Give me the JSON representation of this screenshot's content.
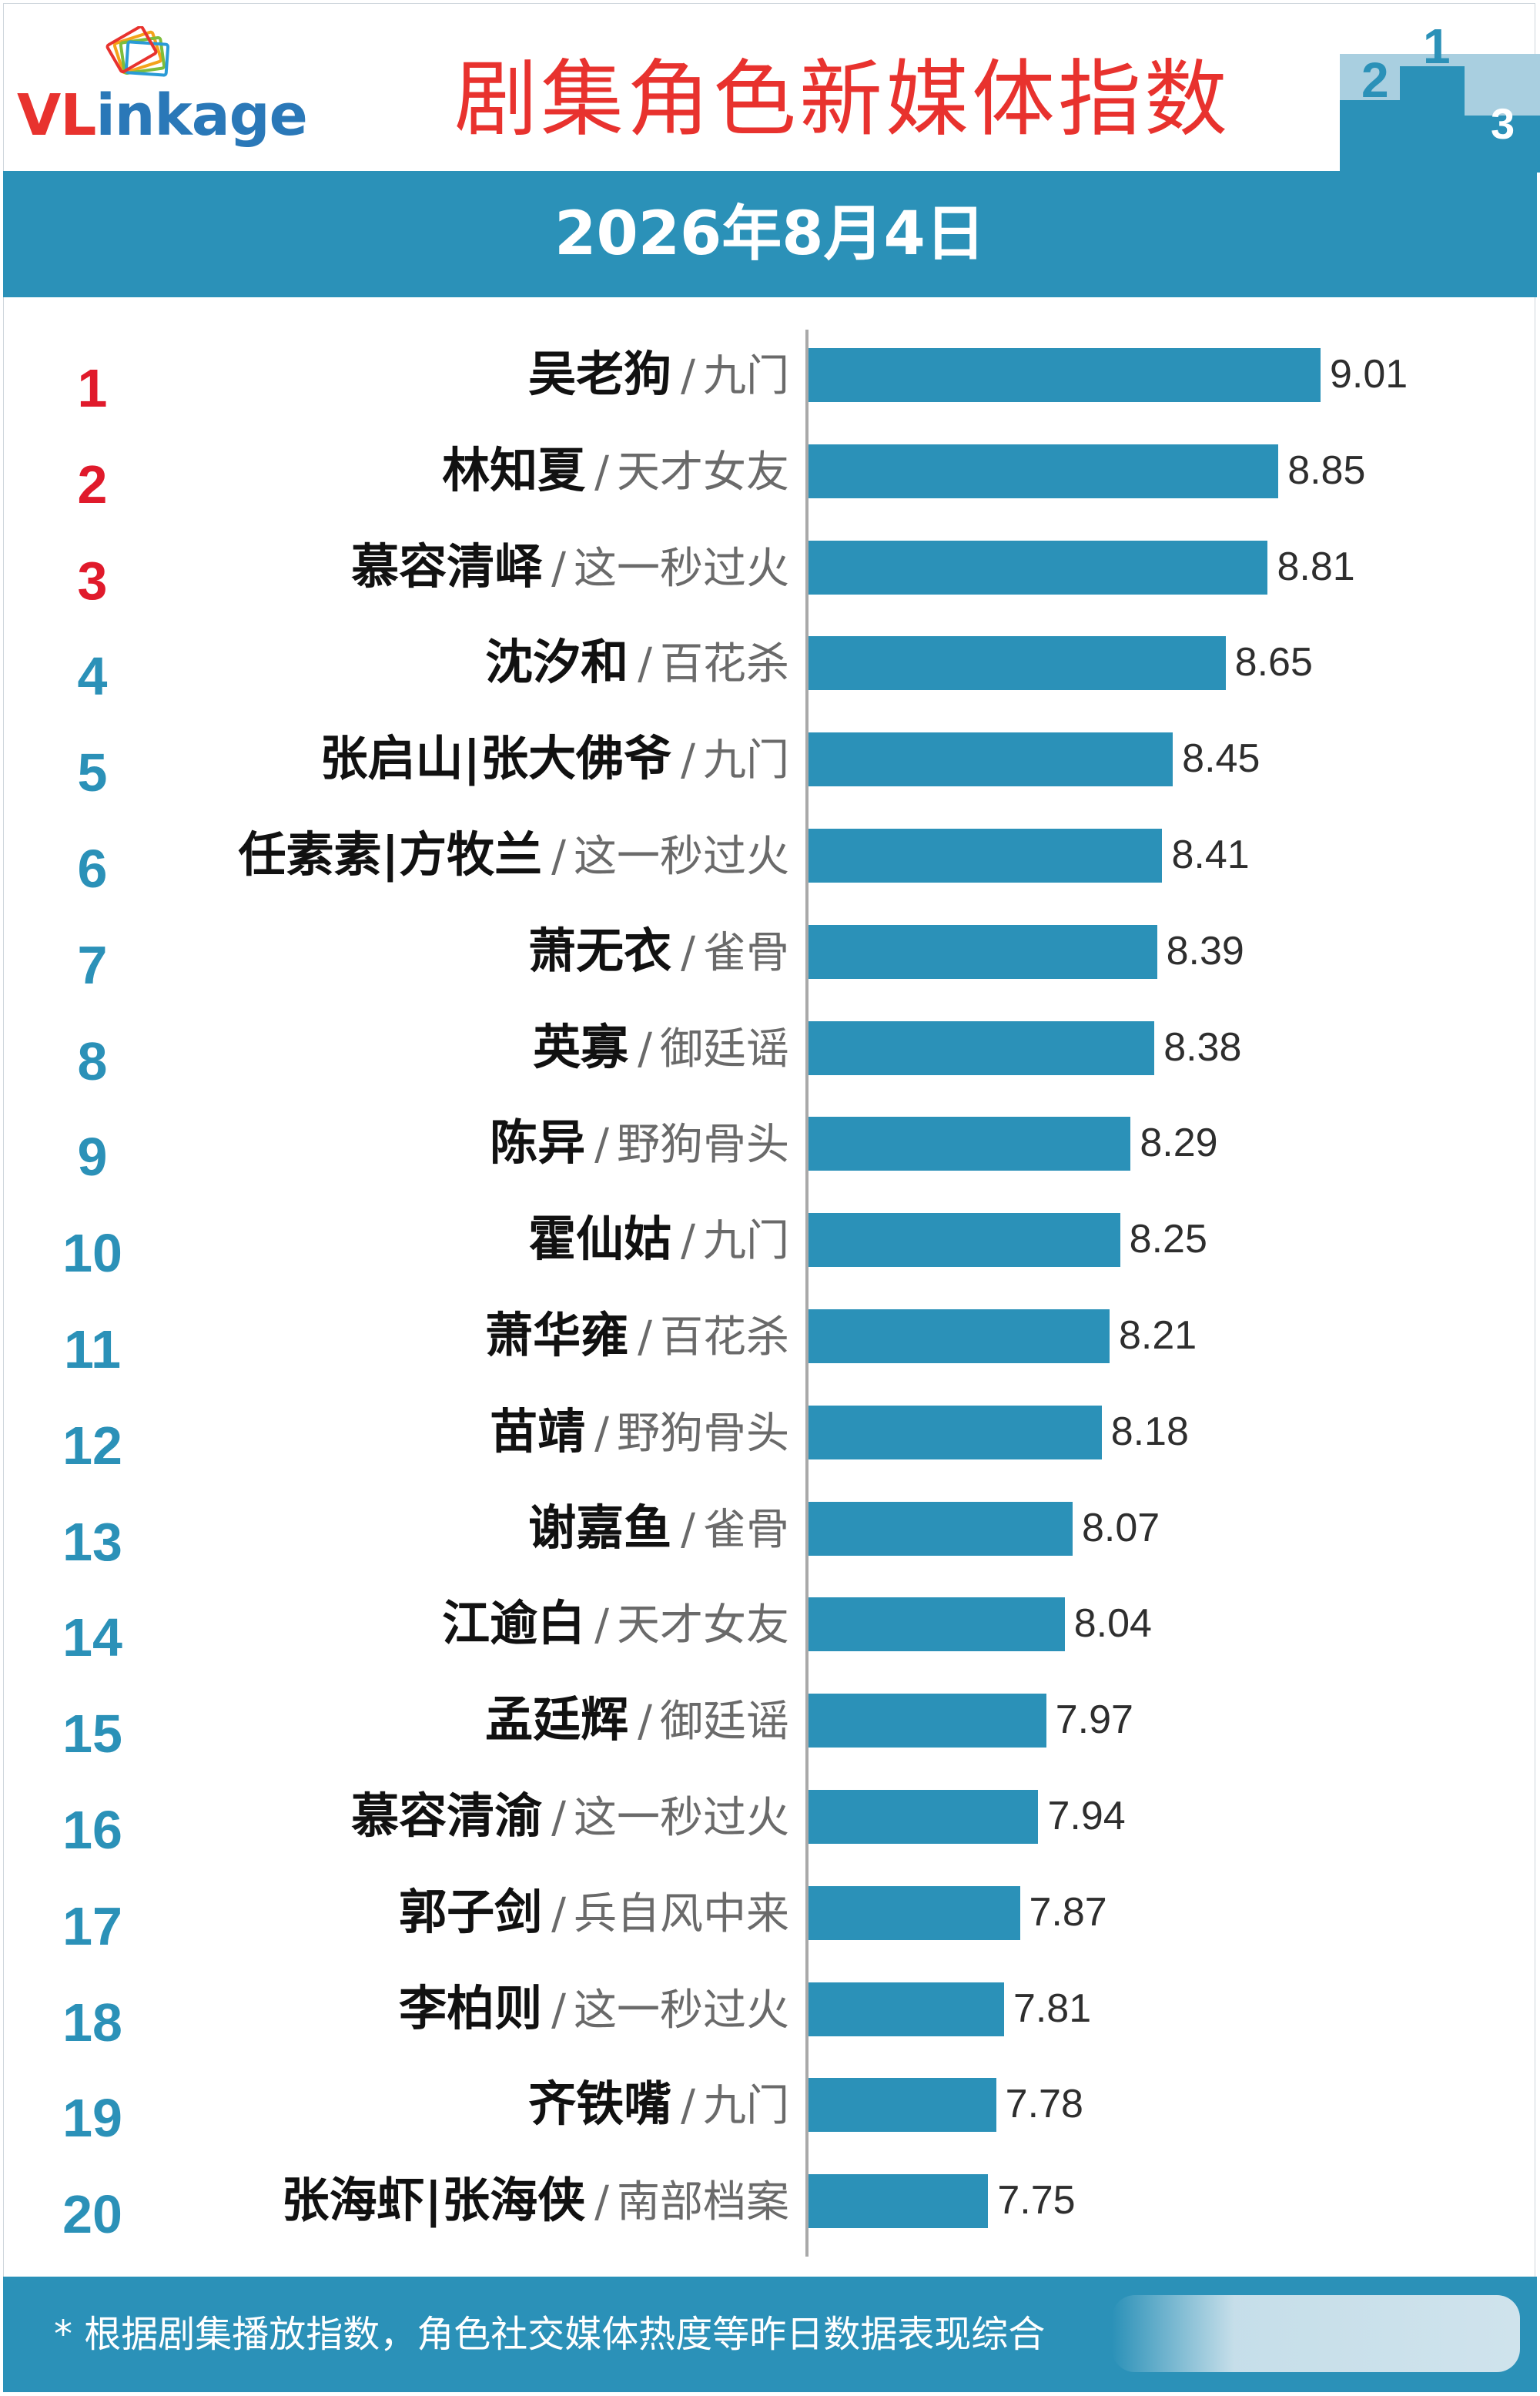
{
  "logo": {
    "brand_prefix": "VL",
    "brand_suffix": "inkage"
  },
  "title": "剧集角色新媒体指数",
  "date": "2026年8月4日",
  "colors": {
    "accent_blue": "#2b91b8",
    "title_red": "#e8322e",
    "rank_top3": "#e01a2b",
    "rank_other": "#2b91b8"
  },
  "separator": "/",
  "chart_data": {
    "type": "bar",
    "orientation": "horizontal",
    "title": "剧集角色新媒体指数",
    "subtitle": "2026年8月4日",
    "xlim": [
      0,
      10
    ],
    "grid": false,
    "legend": "none",
    "items": [
      {
        "rank": "1",
        "name": "吴老狗",
        "show": "九门",
        "value": 9.01,
        "value_label": "9.01"
      },
      {
        "rank": "2",
        "name": "林知夏",
        "show": "天才女友",
        "value": 8.85,
        "value_label": "8.85"
      },
      {
        "rank": "3",
        "name": "慕容清峄",
        "show": "这一秒过火",
        "value": 8.81,
        "value_label": "8.81"
      },
      {
        "rank": "4",
        "name": "沈汐和",
        "show": "百花杀",
        "value": 8.65,
        "value_label": "8.65"
      },
      {
        "rank": "5",
        "name": "张启山|张大佛爷",
        "show": "九门",
        "value": 8.45,
        "value_label": "8.45"
      },
      {
        "rank": "6",
        "name": "任素素|方牧兰",
        "show": "这一秒过火",
        "value": 8.41,
        "value_label": "8.41"
      },
      {
        "rank": "7",
        "name": "萧无衣",
        "show": "雀骨",
        "value": 8.39,
        "value_label": "8.39"
      },
      {
        "rank": "8",
        "name": "英寡",
        "show": "御廷谣",
        "value": 8.38,
        "value_label": "8.38"
      },
      {
        "rank": "9",
        "name": "陈异",
        "show": "野狗骨头",
        "value": 8.29,
        "value_label": "8.29"
      },
      {
        "rank": "10",
        "name": "霍仙姑",
        "show": "九门",
        "value": 8.25,
        "value_label": "8.25"
      },
      {
        "rank": "11",
        "name": "萧华雍",
        "show": "百花杀",
        "value": 8.21,
        "value_label": "8.21"
      },
      {
        "rank": "12",
        "name": "苗靖",
        "show": "野狗骨头",
        "value": 8.18,
        "value_label": "8.18"
      },
      {
        "rank": "13",
        "name": "谢嘉鱼",
        "show": "雀骨",
        "value": 8.07,
        "value_label": "8.07"
      },
      {
        "rank": "14",
        "name": "江逾白",
        "show": "天才女友",
        "value": 8.04,
        "value_label": "8.04"
      },
      {
        "rank": "15",
        "name": "孟廷辉",
        "show": "御廷谣",
        "value": 7.97,
        "value_label": "7.97"
      },
      {
        "rank": "16",
        "name": "慕容清渝",
        "show": "这一秒过火",
        "value": 7.94,
        "value_label": "7.94"
      },
      {
        "rank": "17",
        "name": "郭子剑",
        "show": "兵自风中来",
        "value": 7.87,
        "value_label": "7.87"
      },
      {
        "rank": "18",
        "name": "李柏则",
        "show": "这一秒过火",
        "value": 7.81,
        "value_label": "7.81"
      },
      {
        "rank": "19",
        "name": "齐铁嘴",
        "show": "九门",
        "value": 7.78,
        "value_label": "7.78"
      },
      {
        "rank": "20",
        "name": "张海虾|张海侠",
        "show": "南部档案",
        "value": 7.75,
        "value_label": "7.75"
      }
    ]
  },
  "footnote": "* 根据剧集播放指数，角色社交媒体热度等昨日数据表现综合"
}
